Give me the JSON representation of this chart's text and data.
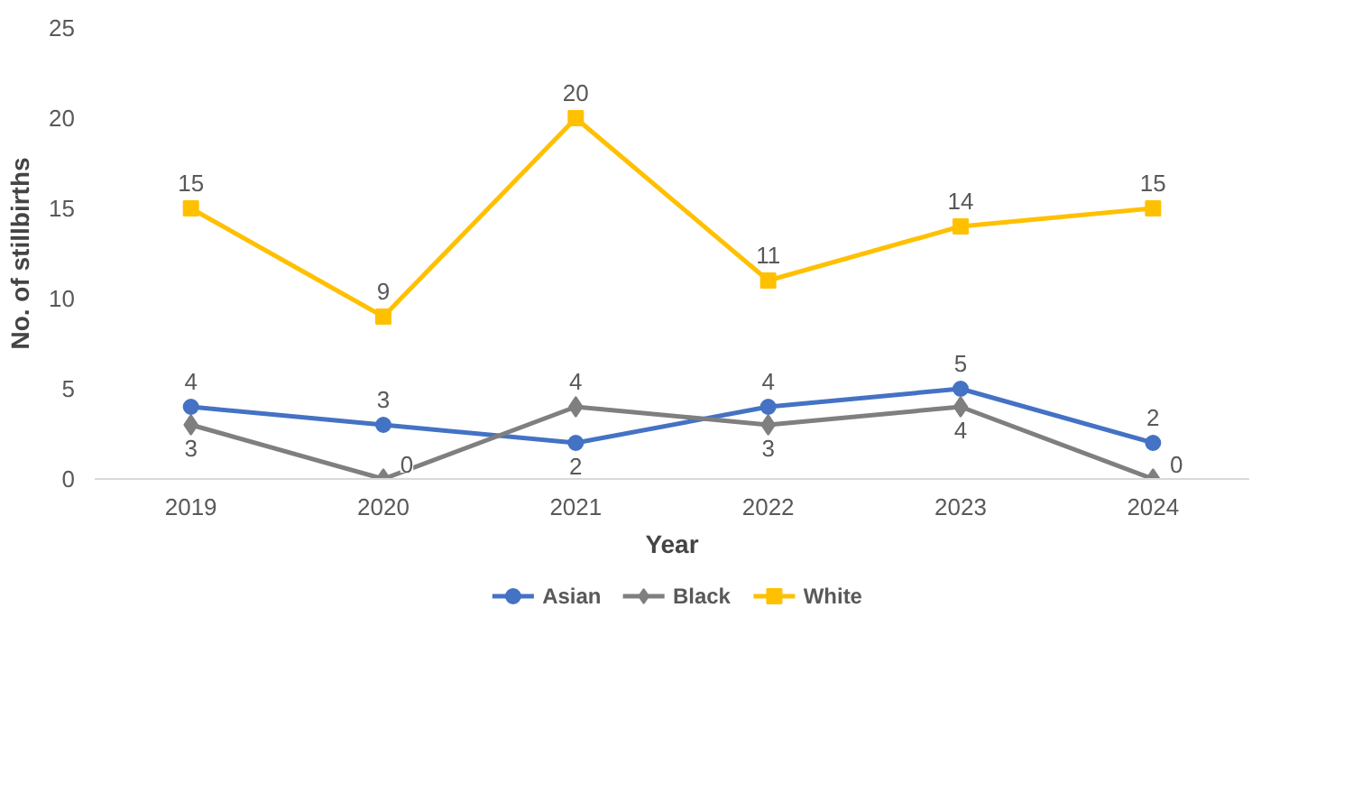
{
  "chart_data": {
    "type": "line",
    "xlabel": "Year",
    "ylabel": "No. of stillbirths",
    "categories": [
      "2019",
      "2020",
      "2021",
      "2022",
      "2023",
      "2024"
    ],
    "series": [
      {
        "name": "Asian",
        "color": "#4472c4",
        "marker": "circle",
        "values": [
          4,
          3,
          2,
          4,
          5,
          2
        ]
      },
      {
        "name": "Black",
        "color": "#7f7f7f",
        "marker": "diamond",
        "values": [
          3,
          0,
          4,
          3,
          4,
          0
        ]
      },
      {
        "name": "White",
        "color": "#ffc000",
        "marker": "square",
        "values": [
          15,
          9,
          20,
          11,
          14,
          15
        ]
      }
    ],
    "ylim": [
      0,
      25
    ],
    "yticks": [
      0,
      5,
      10,
      15,
      20,
      25
    ],
    "grid": false,
    "legend": "bottom",
    "data_labels": true,
    "line_style": "solid"
  }
}
